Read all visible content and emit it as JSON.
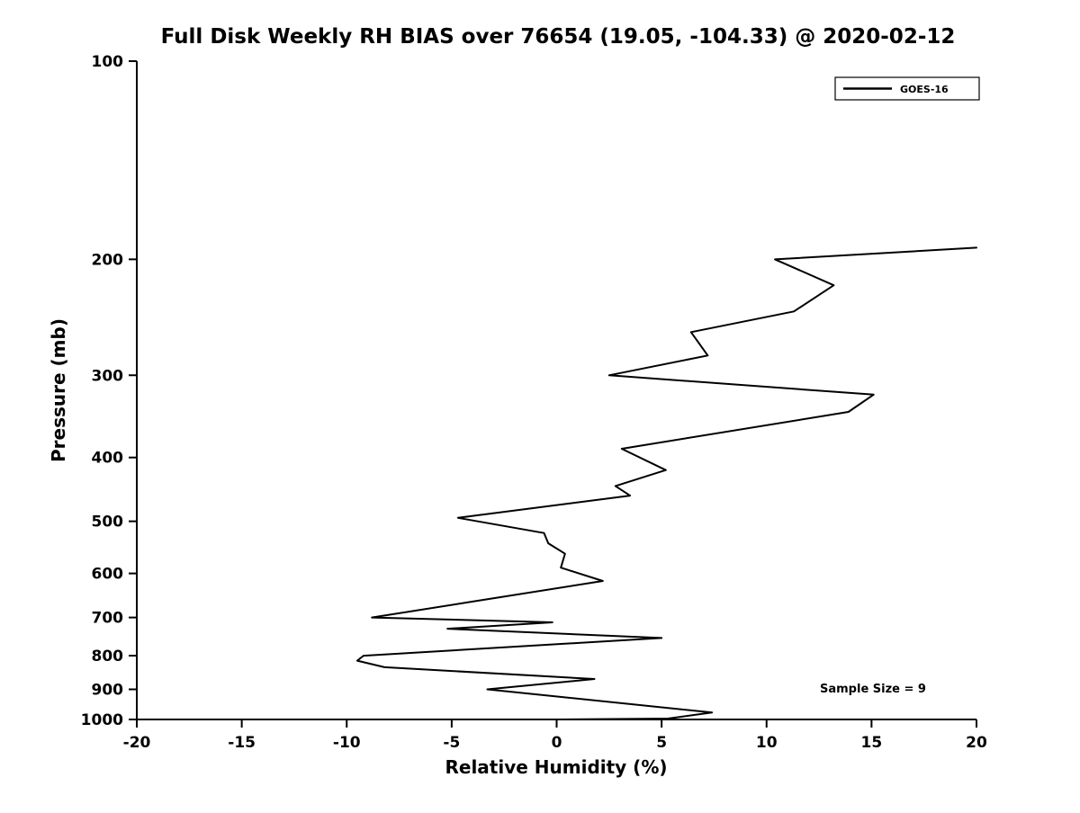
{
  "figure": {
    "title": "Full Disk Weekly RH BIAS over 76654 (19.05, -104.33) @ 2020-02-12"
  },
  "chart_data": {
    "type": "line",
    "title": "Full Disk Weekly RH BIAS over 76654 (19.05, -104.33) @ 2020-02-12",
    "xlabel": "Relative Humidity (%)",
    "ylabel": "Pressure (mb)",
    "xlim": [
      -20,
      20
    ],
    "ylim": [
      1000,
      100
    ],
    "yscale": "log",
    "y_inverted": true,
    "grid": false,
    "xticks": [
      "-20",
      "-15",
      "-10",
      "-5",
      "0",
      "5",
      "10",
      "15",
      "20"
    ],
    "xtick_values": [
      -20,
      -15,
      -10,
      -5,
      0,
      5,
      10,
      15,
      20
    ],
    "yticks": [
      "100",
      "200",
      "300",
      "400",
      "500",
      "600",
      "700",
      "800",
      "900",
      "1000"
    ],
    "ytick_values": [
      100,
      200,
      300,
      400,
      500,
      600,
      700,
      800,
      900,
      1000
    ],
    "legend_position": "upper right",
    "annotation": "Sample Size = 9",
    "series": [
      {
        "name": "GOES-16",
        "color": "#000000",
        "points": [
          {
            "pressure": 192,
            "rh": 20.0
          },
          {
            "pressure": 200,
            "rh": 10.4
          },
          {
            "pressure": 219,
            "rh": 13.2
          },
          {
            "pressure": 240,
            "rh": 11.3
          },
          {
            "pressure": 258,
            "rh": 6.4
          },
          {
            "pressure": 280,
            "rh": 7.2
          },
          {
            "pressure": 300,
            "rh": 2.5
          },
          {
            "pressure": 321,
            "rh": 15.1
          },
          {
            "pressure": 341,
            "rh": 13.9
          },
          {
            "pressure": 388,
            "rh": 3.1
          },
          {
            "pressure": 418,
            "rh": 5.2
          },
          {
            "pressure": 442,
            "rh": 2.8
          },
          {
            "pressure": 457,
            "rh": 3.5
          },
          {
            "pressure": 494,
            "rh": -4.7
          },
          {
            "pressure": 521,
            "rh": -0.6
          },
          {
            "pressure": 540,
            "rh": -0.4
          },
          {
            "pressure": 560,
            "rh": 0.4
          },
          {
            "pressure": 588,
            "rh": 0.2
          },
          {
            "pressure": 616,
            "rh": 2.2
          },
          {
            "pressure": 662,
            "rh": -4.0
          },
          {
            "pressure": 700,
            "rh": -8.8
          },
          {
            "pressure": 712,
            "rh": -0.2
          },
          {
            "pressure": 728,
            "rh": -5.2
          },
          {
            "pressure": 752,
            "rh": 5.0
          },
          {
            "pressure": 800,
            "rh": -9.2
          },
          {
            "pressure": 814,
            "rh": -9.5
          },
          {
            "pressure": 833,
            "rh": -8.2
          },
          {
            "pressure": 868,
            "rh": 1.8
          },
          {
            "pressure": 900,
            "rh": -3.3
          },
          {
            "pressure": 976,
            "rh": 7.4
          },
          {
            "pressure": 997,
            "rh": 5.3
          },
          {
            "pressure": 1000,
            "rh": 0.2
          }
        ]
      }
    ]
  },
  "colors": {
    "line": "#000000",
    "background": "#ffffff",
    "text": "#000000",
    "axis": "#000000"
  }
}
